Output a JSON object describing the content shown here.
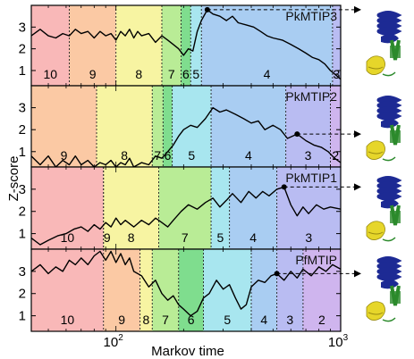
{
  "chart_data": {
    "type": "line",
    "xlabel": "Markov time",
    "ylabel": "Z-score",
    "xscale": "log",
    "xlim": [
      42,
      1000
    ],
    "x_ticks": [
      {
        "value": 100,
        "base": "10",
        "exp": "2"
      },
      {
        "value": 1000,
        "base": "10",
        "exp": "3"
      }
    ],
    "segment_colors": {
      "10": "#f9b8b8",
      "9": "#fbc9a4",
      "8": "#f7f4a2",
      "7": "#b9ec96",
      "6": "#7fdd8e",
      "5": "#a8e6ef",
      "4": "#a9cdf2",
      "3": "#b9bcf2",
      "2": "#cfb5ee"
    },
    "structure_colors": {
      "helix": "#1d2a94",
      "strand": "#2c8a2c",
      "yellow": "#e6d62a"
    },
    "panels": [
      {
        "title": "PkMTIP3",
        "ylim": [
          0.3,
          4.0
        ],
        "yticks": [
          1,
          2,
          3
        ],
        "segments": [
          {
            "label": "10",
            "from": 42,
            "to": 62
          },
          {
            "label": "9",
            "from": 62,
            "to": 100
          },
          {
            "label": "8",
            "from": 100,
            "to": 160
          },
          {
            "label": "7",
            "from": 160,
            "to": 195
          },
          {
            "label": "6",
            "from": 195,
            "to": 215
          },
          {
            "label": "5",
            "from": 215,
            "to": 240
          },
          {
            "label": "4",
            "from": 240,
            "to": 920
          },
          {
            "label": "3",
            "from": 920,
            "to": 1000
          }
        ],
        "marker": {
          "x": 255,
          "y": 3.8
        },
        "series": [
          [
            42,
            2.6
          ],
          [
            46,
            2.9
          ],
          [
            50,
            2.6
          ],
          [
            54,
            2.5
          ],
          [
            58,
            2.7
          ],
          [
            62,
            2.6
          ],
          [
            66,
            2.9
          ],
          [
            70,
            2.7
          ],
          [
            75,
            2.8
          ],
          [
            80,
            2.5
          ],
          [
            85,
            2.8
          ],
          [
            90,
            2.6
          ],
          [
            95,
            2.7
          ],
          [
            100,
            2.4
          ],
          [
            105,
            2.8
          ],
          [
            110,
            2.6
          ],
          [
            115,
            2.9
          ],
          [
            120,
            2.5
          ],
          [
            125,
            2.8
          ],
          [
            130,
            2.6
          ],
          [
            140,
            2.7
          ],
          [
            150,
            2.3
          ],
          [
            160,
            2.6
          ],
          [
            170,
            2.4
          ],
          [
            180,
            2.2
          ],
          [
            190,
            2.0
          ],
          [
            200,
            1.7
          ],
          [
            210,
            2.0
          ],
          [
            220,
            1.9
          ],
          [
            230,
            2.8
          ],
          [
            240,
            3.3
          ],
          [
            255,
            3.8
          ],
          [
            270,
            3.6
          ],
          [
            290,
            3.5
          ],
          [
            310,
            3.3
          ],
          [
            330,
            3.5
          ],
          [
            350,
            3.2
          ],
          [
            380,
            3.1
          ],
          [
            410,
            3.0
          ],
          [
            440,
            2.8
          ],
          [
            470,
            2.6
          ],
          [
            500,
            2.5
          ],
          [
            550,
            2.4
          ],
          [
            600,
            2.2
          ],
          [
            650,
            2.0
          ],
          [
            700,
            1.8
          ],
          [
            750,
            1.6
          ],
          [
            800,
            1.5
          ],
          [
            850,
            1.3
          ],
          [
            900,
            1.0
          ],
          [
            950,
            0.8
          ],
          [
            1000,
            0.6
          ]
        ]
      },
      {
        "title": "PkMTIP2",
        "ylim": [
          0.3,
          4.0
        ],
        "yticks": [
          1,
          2,
          3
        ],
        "segments": [
          {
            "label": "9",
            "from": 42,
            "to": 82
          },
          {
            "label": "8",
            "from": 82,
            "to": 145
          },
          {
            "label": "7",
            "from": 145,
            "to": 162
          },
          {
            "label": "6",
            "from": 162,
            "to": 178
          },
          {
            "label": "5",
            "from": 178,
            "to": 265
          },
          {
            "label": "4",
            "from": 265,
            "to": 570
          },
          {
            "label": "3",
            "from": 570,
            "to": 900
          },
          {
            "label": "2",
            "from": 900,
            "to": 1000
          }
        ],
        "marker": {
          "x": 640,
          "y": 1.8
        },
        "series": [
          [
            42,
            0.8
          ],
          [
            46,
            0.4
          ],
          [
            50,
            0.8
          ],
          [
            54,
            0.3
          ],
          [
            58,
            0.6
          ],
          [
            62,
            0.4
          ],
          [
            66,
            0.8
          ],
          [
            70,
            0.4
          ],
          [
            75,
            0.6
          ],
          [
            80,
            0.3
          ],
          [
            85,
            0.5
          ],
          [
            90,
            0.4
          ],
          [
            95,
            0.6
          ],
          [
            100,
            0.3
          ],
          [
            105,
            0.5
          ],
          [
            110,
            0.4
          ],
          [
            115,
            0.7
          ],
          [
            120,
            0.3
          ],
          [
            130,
            0.5
          ],
          [
            140,
            0.4
          ],
          [
            150,
            0.8
          ],
          [
            160,
            0.7
          ],
          [
            170,
            1.0
          ],
          [
            180,
            1.3
          ],
          [
            190,
            1.7
          ],
          [
            200,
            2.0
          ],
          [
            215,
            2.2
          ],
          [
            230,
            2.1
          ],
          [
            250,
            2.5
          ],
          [
            270,
            3.0
          ],
          [
            290,
            2.8
          ],
          [
            310,
            2.9
          ],
          [
            340,
            2.7
          ],
          [
            370,
            2.5
          ],
          [
            400,
            2.3
          ],
          [
            430,
            2.4
          ],
          [
            460,
            2.0
          ],
          [
            500,
            2.2
          ],
          [
            540,
            2.0
          ],
          [
            580,
            1.6
          ],
          [
            640,
            1.8
          ],
          [
            700,
            1.5
          ],
          [
            760,
            1.3
          ],
          [
            820,
            1.2
          ],
          [
            880,
            1.0
          ],
          [
            940,
            0.7
          ],
          [
            1000,
            0.5
          ]
        ]
      },
      {
        "title": "PkMTIP1",
        "ylim": [
          0.3,
          4.0
        ],
        "yticks": [
          1,
          2,
          3
        ],
        "segments": [
          {
            "label": "10",
            "from": 42,
            "to": 88
          },
          {
            "label": "9",
            "from": 88,
            "to": 88
          },
          {
            "label": "8",
            "from": 88,
            "to": 155
          },
          {
            "label": "7",
            "from": 155,
            "to": 265
          },
          {
            "label": "5",
            "from": 265,
            "to": 320
          },
          {
            "label": "4",
            "from": 320,
            "to": 520
          },
          {
            "label": "3",
            "from": 520,
            "to": 1000
          }
        ],
        "marker": {
          "x": 560,
          "y": 3.1
        },
        "series": [
          [
            42,
            0.8
          ],
          [
            46,
            0.5
          ],
          [
            50,
            0.7
          ],
          [
            55,
            0.9
          ],
          [
            60,
            1.0
          ],
          [
            65,
            1.2
          ],
          [
            70,
            1.3
          ],
          [
            75,
            1.1
          ],
          [
            80,
            1.4
          ],
          [
            85,
            1.2
          ],
          [
            90,
            1.5
          ],
          [
            95,
            1.3
          ],
          [
            100,
            1.7
          ],
          [
            105,
            1.4
          ],
          [
            110,
            1.6
          ],
          [
            120,
            1.3
          ],
          [
            130,
            1.6
          ],
          [
            140,
            1.4
          ],
          [
            150,
            1.7
          ],
          [
            160,
            1.5
          ],
          [
            170,
            1.3
          ],
          [
            180,
            1.6
          ],
          [
            195,
            2.0
          ],
          [
            210,
            2.3
          ],
          [
            230,
            2.1
          ],
          [
            250,
            2.4
          ],
          [
            270,
            2.6
          ],
          [
            290,
            2.2
          ],
          [
            310,
            2.5
          ],
          [
            330,
            2.8
          ],
          [
            360,
            2.4
          ],
          [
            390,
            2.9
          ],
          [
            420,
            2.6
          ],
          [
            450,
            2.9
          ],
          [
            480,
            2.7
          ],
          [
            520,
            3.0
          ],
          [
            560,
            3.1
          ],
          [
            600,
            2.3
          ],
          [
            640,
            1.8
          ],
          [
            680,
            2.2
          ],
          [
            720,
            1.9
          ],
          [
            780,
            2.3
          ],
          [
            840,
            2.1
          ],
          [
            900,
            2.2
          ],
          [
            1000,
            2.1
          ]
        ]
      },
      {
        "title": "PfMTIP",
        "ylim": [
          0.3,
          4.0
        ],
        "yticks": [
          1,
          2,
          3
        ],
        "segments": [
          {
            "label": "10",
            "from": 42,
            "to": 88
          },
          {
            "label": "9",
            "from": 88,
            "to": 128
          },
          {
            "label": "8",
            "from": 128,
            "to": 145
          },
          {
            "label": "7",
            "from": 145,
            "to": 190
          },
          {
            "label": "6",
            "from": 190,
            "to": 245
          },
          {
            "label": "5",
            "from": 245,
            "to": 400
          },
          {
            "label": "4",
            "from": 400,
            "to": 520
          },
          {
            "label": "3",
            "from": 520,
            "to": 680
          },
          {
            "label": "2",
            "from": 680,
            "to": 1000
          }
        ],
        "marker": {
          "x": 520,
          "y": 2.9
        },
        "series": [
          [
            42,
            3.0
          ],
          [
            46,
            3.3
          ],
          [
            50,
            2.9
          ],
          [
            54,
            3.2
          ],
          [
            58,
            3.0
          ],
          [
            62,
            3.5
          ],
          [
            66,
            3.3
          ],
          [
            70,
            3.6
          ],
          [
            75,
            3.3
          ],
          [
            80,
            3.7
          ],
          [
            85,
            3.9
          ],
          [
            90,
            3.5
          ],
          [
            95,
            3.9
          ],
          [
            100,
            3.4
          ],
          [
            105,
            3.8
          ],
          [
            110,
            3.3
          ],
          [
            115,
            3.6
          ],
          [
            120,
            3.0
          ],
          [
            130,
            2.8
          ],
          [
            140,
            2.3
          ],
          [
            150,
            2.6
          ],
          [
            160,
            2.0
          ],
          [
            170,
            1.7
          ],
          [
            180,
            1.9
          ],
          [
            190,
            1.5
          ],
          [
            200,
            1.3
          ],
          [
            215,
            1.0
          ],
          [
            230,
            1.2
          ],
          [
            245,
            1.8
          ],
          [
            260,
            2.0
          ],
          [
            280,
            2.6
          ],
          [
            300,
            2.2
          ],
          [
            320,
            2.4
          ],
          [
            340,
            1.8
          ],
          [
            360,
            1.3
          ],
          [
            380,
            1.5
          ],
          [
            400,
            2.3
          ],
          [
            430,
            2.6
          ],
          [
            460,
            2.5
          ],
          [
            490,
            2.8
          ],
          [
            520,
            2.9
          ],
          [
            560,
            2.6
          ],
          [
            600,
            3.0
          ],
          [
            640,
            2.7
          ],
          [
            680,
            3.1
          ],
          [
            740,
            2.8
          ],
          [
            800,
            3.2
          ],
          [
            860,
            3.0
          ],
          [
            920,
            3.3
          ],
          [
            1000,
            3.1
          ]
        ]
      }
    ]
  }
}
